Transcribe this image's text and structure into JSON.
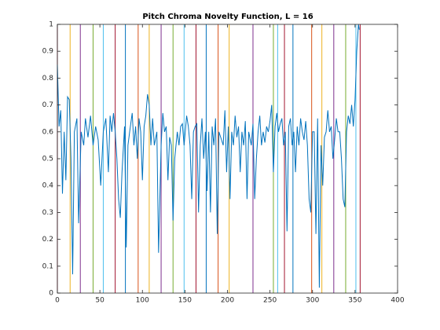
{
  "chart_data": {
    "type": "line",
    "title": "Pitch Chroma Novelty Function, L = 16",
    "x": [
      0,
      2,
      4,
      6,
      8,
      10,
      12,
      14,
      16,
      18,
      20,
      23,
      25,
      28,
      31,
      33,
      36,
      39,
      42,
      45,
      48,
      51,
      54,
      57,
      60,
      62,
      64,
      66,
      68,
      70,
      72,
      74,
      76,
      79,
      81,
      83,
      85,
      88,
      90,
      92,
      94,
      96,
      98,
      100,
      102,
      104,
      106,
      108,
      110,
      112,
      114,
      117,
      119,
      122,
      124,
      126,
      128,
      130,
      132,
      134,
      136,
      138,
      141,
      143,
      145,
      147,
      149,
      152,
      154,
      156,
      158,
      160,
      162,
      164,
      166,
      168,
      170,
      172,
      174,
      176,
      178,
      180,
      182,
      184,
      186,
      188,
      190,
      192,
      195,
      197,
      199,
      201,
      203,
      205,
      207,
      209,
      211,
      213,
      215,
      217,
      219,
      221,
      223,
      225,
      228,
      230,
      232,
      234,
      236,
      238,
      240,
      242,
      244,
      246,
      248,
      250,
      252,
      254,
      256,
      258,
      260,
      262,
      264,
      266,
      268,
      270,
      272,
      274,
      276,
      278,
      280,
      282,
      284,
      286,
      288,
      290,
      292,
      294,
      296,
      298,
      300,
      302,
      304,
      306,
      308,
      310,
      312,
      314,
      316,
      318,
      320,
      322,
      324,
      326,
      328,
      330,
      332,
      334,
      336,
      338,
      340,
      342,
      344,
      346,
      348,
      350,
      352,
      354,
      355
    ],
    "values": [
      0.85,
      0.62,
      0.68,
      0.37,
      0.6,
      0.42,
      0.73,
      0.72,
      0.5,
      0.07,
      0.6,
      0.65,
      0.26,
      0.6,
      0.55,
      0.65,
      0.58,
      0.66,
      0.55,
      0.62,
      0.57,
      0.4,
      0.6,
      0.65,
      0.45,
      0.66,
      0.6,
      0.67,
      0.6,
      0.5,
      0.35,
      0.28,
      0.45,
      0.62,
      0.17,
      0.55,
      0.6,
      0.67,
      0.55,
      0.62,
      0.5,
      0.65,
      0.6,
      0.42,
      0.62,
      0.66,
      0.74,
      0.7,
      0.55,
      0.65,
      0.55,
      0.6,
      0.15,
      0.55,
      0.67,
      0.6,
      0.62,
      0.42,
      0.58,
      0.55,
      0.27,
      0.5,
      0.6,
      0.55,
      0.62,
      0.63,
      0.55,
      0.66,
      0.62,
      0.55,
      0.35,
      0.6,
      0.62,
      0.63,
      0.3,
      0.55,
      0.65,
      0.5,
      0.6,
      0.38,
      0.6,
      0.3,
      0.62,
      0.55,
      0.65,
      0.22,
      0.6,
      0.58,
      0.55,
      0.68,
      0.45,
      0.62,
      0.35,
      0.6,
      0.55,
      0.66,
      0.58,
      0.62,
      0.45,
      0.6,
      0.55,
      0.64,
      0.35,
      0.6,
      0.55,
      0.63,
      0.35,
      0.5,
      0.6,
      0.66,
      0.55,
      0.6,
      0.56,
      0.62,
      0.6,
      0.64,
      0.7,
      0.45,
      0.62,
      0.67,
      0.6,
      0.63,
      0.65,
      0.55,
      0.6,
      0.23,
      0.62,
      0.65,
      0.55,
      0.6,
      0.45,
      0.62,
      0.55,
      0.65,
      0.6,
      0.57,
      0.64,
      0.55,
      0.35,
      0.3,
      0.6,
      0.6,
      0.22,
      0.65,
      0.02,
      0.55,
      0.4,
      0.58,
      0.6,
      0.68,
      0.6,
      0.62,
      0.5,
      0.57,
      0.65,
      0.6,
      0.6,
      0.5,
      0.35,
      0.32,
      0.6,
      0.66,
      0.63,
      0.7,
      0.62,
      0.72,
      0.9,
      1.0,
      0.98
    ],
    "color": "#0072bd",
    "vlines": {
      "x": [
        0,
        15,
        27,
        42,
        54,
        68,
        80,
        95,
        108,
        122,
        136,
        149,
        163,
        175,
        189,
        202,
        230,
        254,
        259,
        267,
        277,
        299,
        311,
        325,
        339,
        351,
        356
      ],
      "colors": [
        "#a2142f",
        "#edb120",
        "#7e2f8e",
        "#77ac30",
        "#4dbeee",
        "#a2142f",
        "#0072bd",
        "#d95319",
        "#edb120",
        "#7e2f8e",
        "#77ac30",
        "#4dbeee",
        "#a2142f",
        "#0072bd",
        "#d95319",
        "#edb120",
        "#7e2f8e",
        "#77ac30",
        "#4dbeee",
        "#a2142f",
        "#0072bd",
        "#d95319",
        "#edb120",
        "#7e2f8e",
        "#77ac30",
        "#4dbeee",
        "#a2142f"
      ]
    },
    "xlim": [
      0,
      400
    ],
    "xticks": [
      0,
      50,
      100,
      150,
      200,
      250,
      300,
      350,
      400
    ],
    "ylim": [
      0,
      1
    ],
    "yticks": [
      0,
      0.1,
      0.2,
      0.3,
      0.4,
      0.5,
      0.6,
      0.7,
      0.8,
      0.9,
      1
    ]
  }
}
